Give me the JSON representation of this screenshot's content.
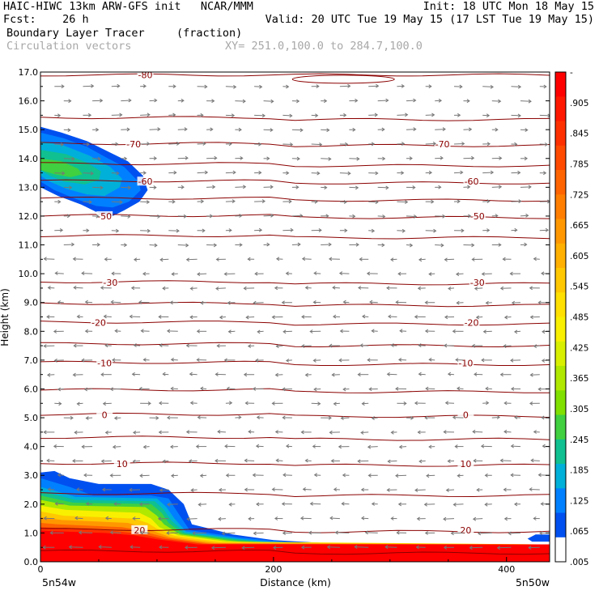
{
  "header": {
    "line1_left": "HAIC-HIWC 13km ARW-GFS init   NCAR/MMM",
    "line1_right": "Init: 18 UTC Mon 18 May 15",
    "line2_left": "Fcst:    26 h",
    "line2_right": "Valid: 20 UTC Tue 19 May 15 (17 LST Tue 19 May 15)",
    "field_name": "Boundary Layer Tracer",
    "field_units": "(fraction)",
    "vector_name": "Circulation vectors",
    "xy_range": "XY= 251.0,100.0 to 284.7,100.0"
  },
  "chart_data": {
    "type": "heatmap",
    "xlabel": "Distance (km)",
    "ylabel": "Height (km)",
    "xlim": [
      0,
      437
    ],
    "ylim": [
      0,
      17
    ],
    "x_ticks": [
      "0",
      "200",
      "400"
    ],
    "x_end_labels": [
      "5n54w",
      "5n50w"
    ],
    "y_ticks": [
      "0.0",
      "1.0",
      "2.0",
      "3.0",
      "4.0",
      "5.0",
      "6.0",
      "7.0",
      "8.0",
      "9.0",
      "10.0",
      "11.0",
      "12.0",
      "13.0",
      "14.0",
      "15.0",
      "16.0",
      "17.0"
    ],
    "colorbar": {
      "labels": [
        "-",
        ".905",
        ".845",
        ".785",
        ".725",
        ".665",
        ".605",
        ".545",
        ".485",
        ".425",
        ".365",
        ".305",
        ".245",
        ".185",
        ".125",
        ".065",
        ".005"
      ],
      "colors": [
        "#ff0000",
        "#ff1800",
        "#ff3000",
        "#ff4a00",
        "#ff6400",
        "#ff7e00",
        "#ff9800",
        "#ffb000",
        "#ffc800",
        "#ffe000",
        "#f8f000",
        "#d8f000",
        "#b0e800",
        "#80e000",
        "#40d040",
        "#10c090",
        "#00b0d8",
        "#0080ff",
        "#0050f0",
        "#ffffff"
      ]
    },
    "isotherms": [
      {
        "label": "-80",
        "height": 16.9
      },
      {
        "label": "-70",
        "height": 14.5
      },
      {
        "label": "-60",
        "height": 13.2
      },
      {
        "label": "-50",
        "height": 12.0
      },
      {
        "label": "-30",
        "height": 9.7
      },
      {
        "label": "-20",
        "height": 8.3
      },
      {
        "label": "-10",
        "height": 6.9
      },
      {
        "label": "0",
        "height": 5.1
      },
      {
        "label": "10",
        "height": 3.4
      },
      {
        "label": "20",
        "height": 1.1
      }
    ]
  }
}
